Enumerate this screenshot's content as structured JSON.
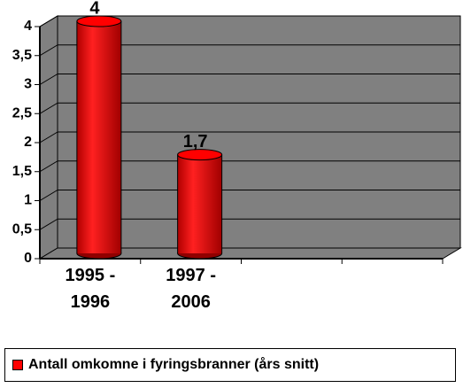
{
  "chart_data": {
    "type": "bar3d",
    "categories": [
      "1995 - 1996",
      "1997 - 2006",
      null,
      null
    ],
    "series": [
      {
        "name": "Antall omkomne i fyringsbranner (års snitt)",
        "color": "#ff0000",
        "values": [
          4,
          1.7,
          null,
          null
        ],
        "value_labels": [
          "4",
          "1,7",
          null,
          null
        ]
      }
    ],
    "ylim": [
      0,
      4
    ],
    "yticks": [
      0,
      {
        "value": 0.5,
        "label": "0,5"
      },
      1,
      {
        "value": 1.5,
        "label": "1,5"
      },
      2,
      {
        "value": 2.5,
        "label": "2,5"
      },
      3,
      {
        "value": 3.5,
        "label": "3,5"
      },
      4
    ],
    "grid": true,
    "legend": "bottom"
  }
}
